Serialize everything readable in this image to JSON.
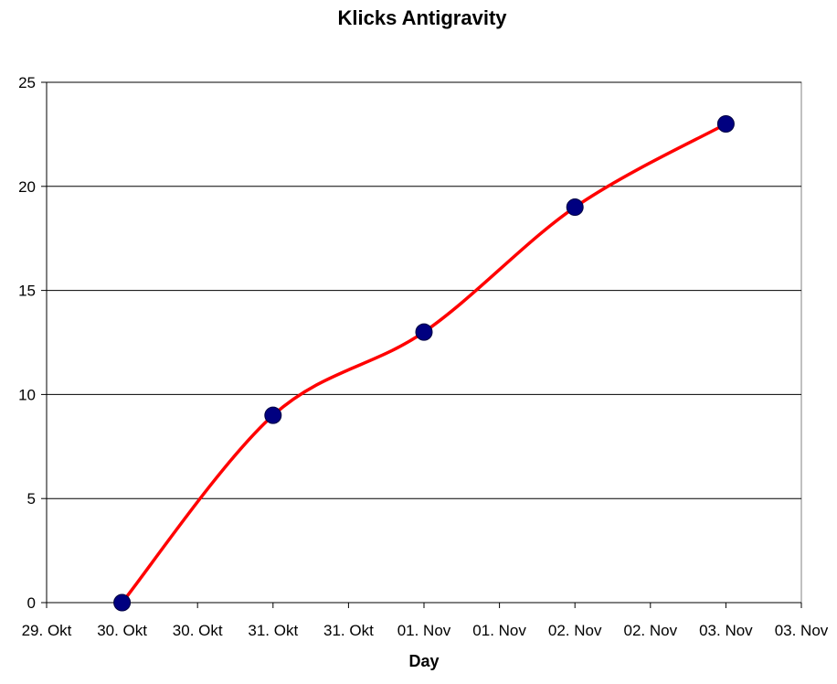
{
  "chart_data": {
    "type": "line",
    "title": "Klicks Antigravity",
    "xlabel": "Day",
    "ylabel": "",
    "ylim": [
      0,
      25
    ],
    "yticks": [
      0,
      5,
      10,
      15,
      20,
      25
    ],
    "xtick_labels": [
      "29. Okt",
      "30. Okt",
      "30. Okt",
      "31. Okt",
      "31. Okt",
      "01. Nov",
      "01. Nov",
      "02. Nov",
      "02. Nov",
      "03. Nov",
      "03. Nov"
    ],
    "grid": "horizontal",
    "legend": "none",
    "series": [
      {
        "x": [
          "30. Okt",
          "31. Okt",
          "01. Nov",
          "02. Nov",
          "03. Nov"
        ],
        "values": [
          0,
          9,
          13,
          19,
          23
        ],
        "line_color": "#ff0000",
        "marker_color": "#000080",
        "smooth": true
      }
    ]
  }
}
